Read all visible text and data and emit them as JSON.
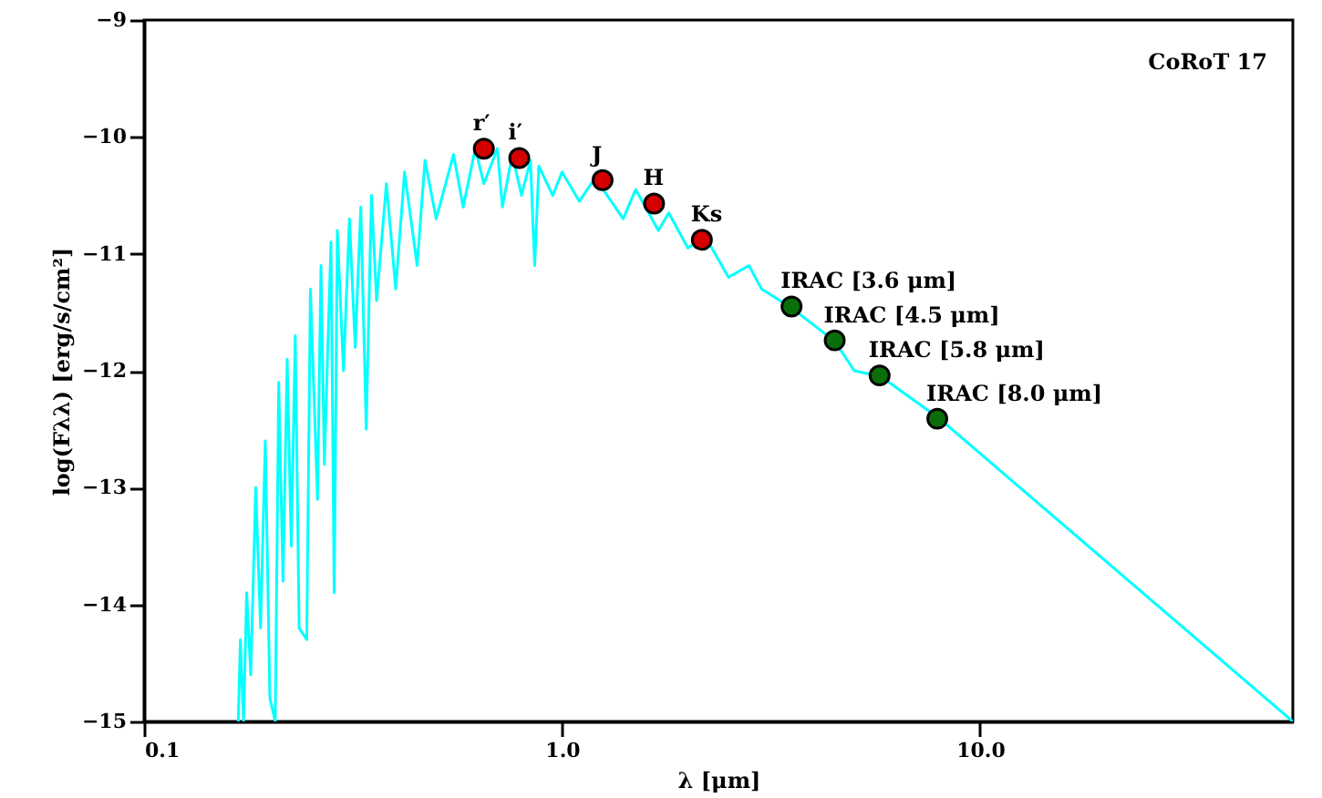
{
  "chart_data": {
    "type": "line",
    "xlabel": "λ [μm]",
    "ylabel": "log(Fλλ) [erg/s/cm²]",
    "log": "x",
    "grid": false,
    "marker": "circle",
    "xlim": [
      0.1,
      56
    ],
    "xticks": [
      {
        "value": 0.1,
        "label": "0.1"
      },
      {
        "value": 1,
        "label": "1.0"
      },
      {
        "value": 10,
        "label": "10.0"
      }
    ],
    "ylim": [
      -15,
      -9
    ],
    "yticks": [
      -15,
      -14,
      -13,
      -12,
      -11,
      -10,
      -9
    ],
    "series": [
      {
        "color": "#00ffff",
        "marker": "none",
        "line_style": "solid",
        "x": [
          0.168,
          0.17,
          0.173,
          0.176,
          0.18,
          0.185,
          0.19,
          0.195,
          0.2,
          0.206,
          0.21,
          0.215,
          0.22,
          0.225,
          0.23,
          0.235,
          0.245,
          0.25,
          0.26,
          0.265,
          0.27,
          0.28,
          0.285,
          0.29,
          0.3,
          0.31,
          0.32,
          0.33,
          0.34,
          0.35,
          0.36,
          0.38,
          0.4,
          0.42,
          0.45,
          0.47,
          0.5,
          0.55,
          0.58,
          0.62,
          0.65,
          0.7,
          0.72,
          0.76,
          0.8,
          0.84,
          0.86,
          0.88,
          0.95,
          1.0,
          1.1,
          1.2,
          1.4,
          1.5,
          1.7,
          1.8,
          2.0,
          2.2,
          2.5,
          2.8,
          3.0,
          3.5,
          4.5,
          5.0,
          5.8,
          8.0,
          56
        ],
        "values": [
          -15.0,
          -14.3,
          -15.0,
          -13.9,
          -14.6,
          -13.0,
          -14.2,
          -12.6,
          -14.8,
          -15.0,
          -12.1,
          -13.8,
          -11.9,
          -13.5,
          -11.7,
          -14.2,
          -14.3,
          -11.3,
          -13.1,
          -11.1,
          -12.8,
          -10.9,
          -13.9,
          -10.8,
          -12.0,
          -10.7,
          -11.8,
          -10.6,
          -12.5,
          -10.5,
          -11.4,
          -10.4,
          -11.3,
          -10.3,
          -11.1,
          -10.2,
          -10.7,
          -10.15,
          -10.6,
          -10.1,
          -10.4,
          -10.1,
          -10.6,
          -10.15,
          -10.5,
          -10.2,
          -11.1,
          -10.25,
          -10.5,
          -10.3,
          -10.55,
          -10.35,
          -10.7,
          -10.45,
          -10.8,
          -10.65,
          -10.95,
          -10.85,
          -11.2,
          -11.1,
          -11.3,
          -11.45,
          -11.75,
          -12.0,
          -12.05,
          -12.41,
          -15.0
        ]
      },
      {
        "type": "scatter",
        "color": "#d40000",
        "x": [
          0.65,
          0.79,
          1.25,
          1.66,
          2.16
        ],
        "values": [
          -10.1,
          -10.18,
          -10.37,
          -10.57,
          -10.88
        ]
      },
      {
        "type": "scatter",
        "color": "#0a6e0a",
        "x": [
          3.54,
          4.49,
          5.75,
          7.9
        ],
        "values": [
          -11.45,
          -11.74,
          -12.04,
          -12.41
        ]
      }
    ],
    "annotations": [
      {
        "text": "r′",
        "x": 0.65,
        "y": -10.1
      },
      {
        "text": "i′",
        "x": 0.79,
        "y": -10.18
      },
      {
        "text": "J",
        "x": 1.25,
        "y": -10.37
      },
      {
        "text": "H",
        "x": 1.66,
        "y": -10.57
      },
      {
        "text": "Ks",
        "x": 2.16,
        "y": -10.88
      },
      {
        "text": "IRAC [3.6 μm]",
        "x": 3.54,
        "y": -11.45
      },
      {
        "text": "IRAC [4.5 μm]",
        "x": 4.49,
        "y": -11.74
      },
      {
        "text": "IRAC [5.8 μm]",
        "x": 5.75,
        "y": -12.04
      },
      {
        "text": "IRAC [8.0 μm]",
        "x": 7.9,
        "y": -12.41
      },
      "CoRoT 17"
    ]
  }
}
